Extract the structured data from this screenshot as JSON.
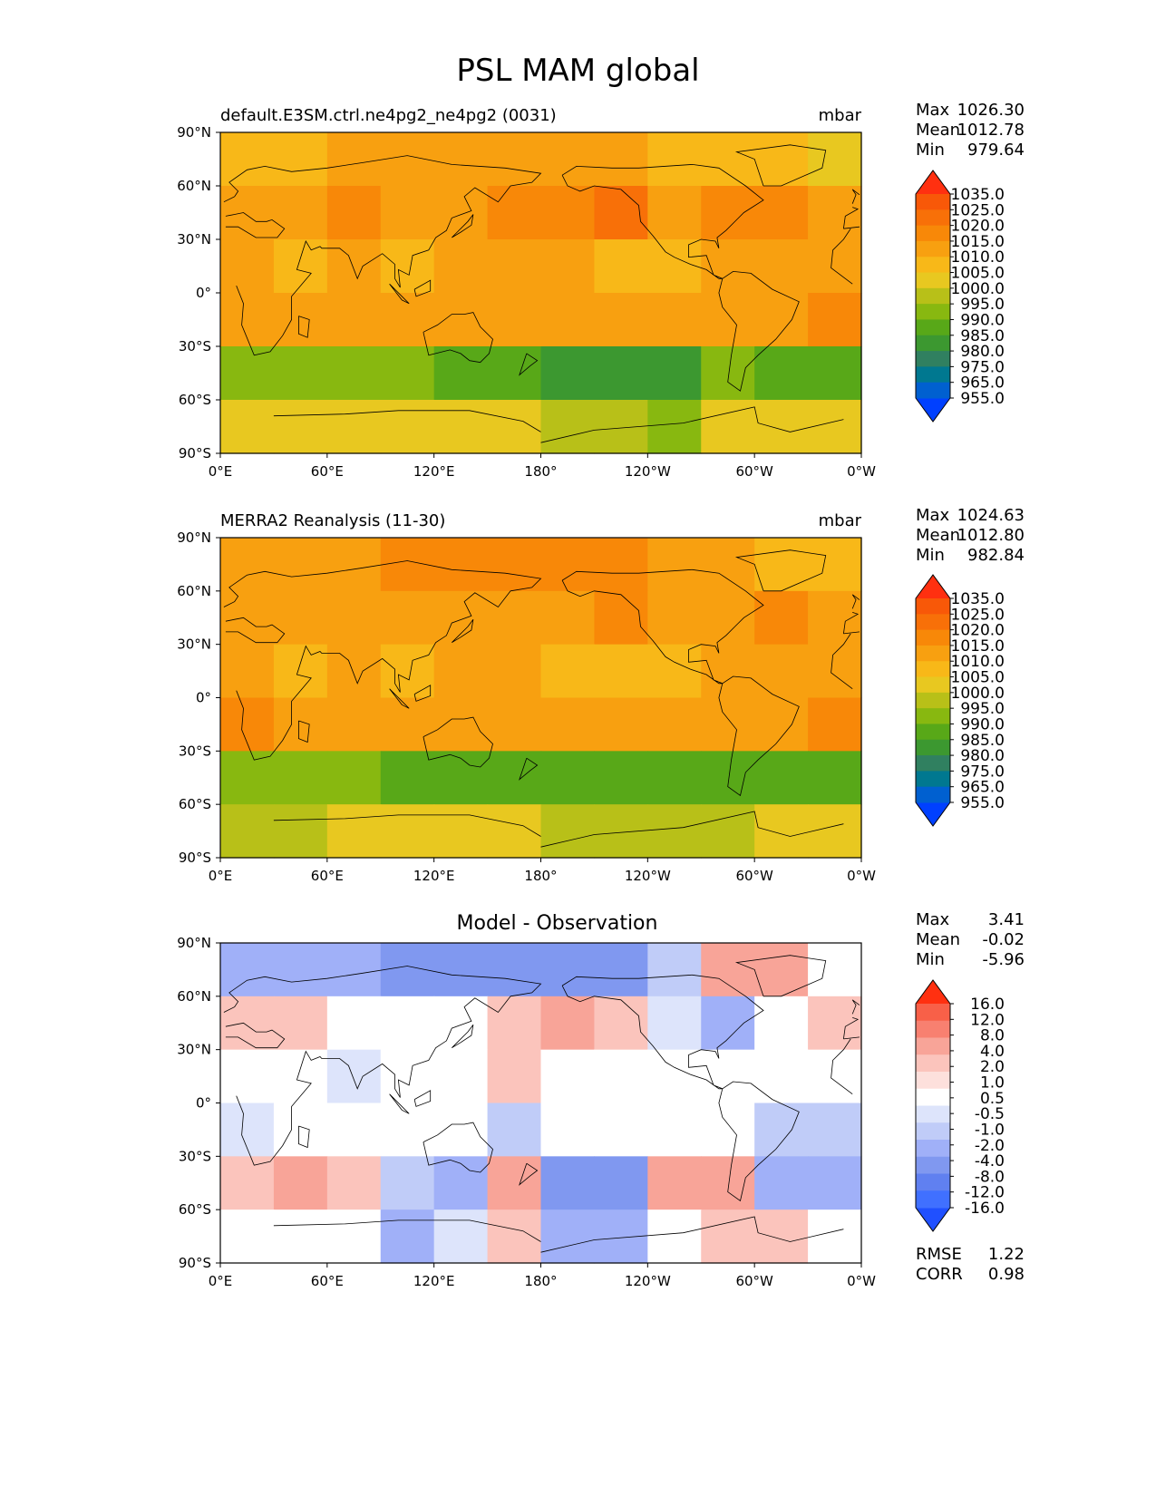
{
  "figure_title": "PSL MAM global",
  "lon_ticks": [
    "0°E",
    "60°E",
    "120°E",
    "180°",
    "120°W",
    "60°W",
    "0°W"
  ],
  "lat_ticks": [
    "90°N",
    "60°N",
    "30°N",
    "0°",
    "30°S",
    "60°S",
    "90°S"
  ],
  "colors": {
    "abs_cmap": [
      "#0040ff",
      "#0060d0",
      "#007890",
      "#308060",
      "#3c9830",
      "#58a818",
      "#88b810",
      "#b8c018",
      "#e8c820",
      "#f8b818",
      "#f8a010",
      "#f88808",
      "#f87008",
      "#f85808",
      "#ff3010"
    ],
    "diff_cmap": [
      "#2050ff",
      "#4070ff",
      "#6080f0",
      "#8098f0",
      "#a0b0f8",
      "#c0ccf8",
      "#dde4fb",
      "#ffffff",
      "#fde0dc",
      "#fbc4bc",
      "#f8a498",
      "#f88070",
      "#f86048",
      "#ff3010"
    ]
  },
  "chart_data": [
    {
      "type": "heatmap",
      "title": "default.E3SM.ctrl.ne4pg2_ne4pg2 (0031)",
      "units": "mbar",
      "stats": {
        "labels": [
          "Max",
          "Mean",
          "Min"
        ],
        "values": [
          "1026.30",
          "1012.78",
          "979.64"
        ]
      },
      "colorbar_levels": [
        "1035.0",
        "1025.0",
        "1020.0",
        "1015.0",
        "1010.0",
        "1005.0",
        "1000.0",
        "995.0",
        "990.0",
        "985.0",
        "980.0",
        "975.0",
        "965.0",
        "955.0"
      ],
      "x": [
        0,
        30,
        60,
        90,
        120,
        150,
        180,
        210,
        240,
        270,
        300,
        330
      ],
      "y": [
        75,
        45,
        15,
        -15,
        -45,
        -75
      ],
      "z": [
        [
          1012,
          1010,
          1013,
          1016,
          1016,
          1014,
          1017,
          1014,
          1012,
          1011,
          1008,
          1006
        ],
        [
          1016,
          1015,
          1018,
          1017,
          1016,
          1018,
          1019,
          1023,
          1015,
          1018,
          1020,
          1017
        ],
        [
          1013,
          1012,
          1013,
          1012,
          1013,
          1015,
          1013,
          1012,
          1011,
          1013,
          1013,
          1013
        ],
        [
          1017,
          1017,
          1016,
          1016,
          1015,
          1014,
          1017,
          1017,
          1014,
          1015,
          1017,
          1019
        ],
        [
          997,
          997,
          997,
          993,
          990,
          992,
          986,
          983,
          985,
          993,
          992,
          991
        ],
        [
          1003,
          1003,
          1005,
          1006,
          1007,
          1005,
          998,
          998,
          997,
          1004,
          1005,
          1006
        ]
      ]
    },
    {
      "type": "heatmap",
      "title": "MERRA2 Reanalysis (11-30)",
      "units": "mbar",
      "stats": {
        "labels": [
          "Max",
          "Mean",
          "Min"
        ],
        "values": [
          "1024.63",
          "1012.80",
          "982.84"
        ]
      },
      "colorbar_levels": [
        "1035.0",
        "1025.0",
        "1020.0",
        "1015.0",
        "1010.0",
        "1005.0",
        "1000.0",
        "995.0",
        "990.0",
        "985.0",
        "980.0",
        "975.0",
        "965.0",
        "955.0"
      ],
      "x": [
        0,
        30,
        60,
        90,
        120,
        150,
        180,
        210,
        240,
        270,
        300,
        330
      ],
      "y": [
        75,
        45,
        15,
        -15,
        -45,
        -75
      ],
      "z": [
        [
          1016,
          1014,
          1016,
          1019,
          1018,
          1018,
          1018,
          1018,
          1016,
          1013,
          1010,
          1010
        ],
        [
          1014,
          1014,
          1016,
          1017,
          1015,
          1017,
          1017,
          1021,
          1016,
          1016,
          1021,
          1015
        ],
        [
          1013,
          1012,
          1013,
          1012,
          1013,
          1013,
          1012,
          1012,
          1011,
          1013,
          1013,
          1013
        ],
        [
          1018,
          1017,
          1016,
          1016,
          1015,
          1015,
          1017,
          1016,
          1015,
          1015,
          1017,
          1019
        ],
        [
          994,
          993,
          994,
          992,
          991,
          989,
          990,
          991,
          988,
          990,
          989,
          992
        ],
        [
          1002,
          1001,
          1003,
          1005,
          1006,
          1005,
          999,
          1000,
          999,
          1001,
          1003,
          1004
        ]
      ]
    },
    {
      "type": "heatmap",
      "title": "Model - Observation",
      "units": "",
      "stats": {
        "labels": [
          "Max",
          "Mean",
          "Min"
        ],
        "values": [
          "3.41",
          "-0.02",
          "-5.96"
        ]
      },
      "colorbar_levels": [
        "16.0",
        "12.0",
        "8.0",
        "4.0",
        "2.0",
        "1.0",
        "0.5",
        "-0.5",
        "-1.0",
        "-2.0",
        "-4.0",
        "-8.0",
        "-12.0",
        "-16.0"
      ],
      "metrics": {
        "labels": [
          "RMSE",
          "CORR"
        ],
        "values": [
          "1.22",
          "0.98"
        ]
      },
      "x": [
        0,
        30,
        60,
        90,
        120,
        150,
        180,
        210,
        240,
        270,
        300,
        330
      ],
      "y": [
        75,
        45,
        15,
        -15,
        -45,
        -75
      ],
      "z": [
        [
          -2.5,
          -2.5,
          -2.5,
          -3.0,
          -3.0,
          -4.0,
          -4.0,
          -4.0,
          -0.8,
          2.5,
          2.5,
          -0.3
        ],
        [
          1.5,
          1.0,
          -0.3,
          -0.3,
          0.3,
          1.5,
          2.8,
          1.2,
          -0.6,
          -2.0,
          -0.3,
          1.0
        ],
        [
          0.2,
          0.2,
          -0.6,
          0.2,
          0.2,
          1.2,
          0.3,
          0.3,
          0.2,
          0.0,
          0.2,
          0.3
        ],
        [
          -0.5,
          -0.3,
          -0.2,
          -0.3,
          -0.3,
          -1.2,
          0.2,
          0.3,
          -0.2,
          -0.3,
          -1.0,
          -1.2
        ],
        [
          1.0,
          3.0,
          1.5,
          -1.0,
          -2.5,
          2.5,
          -3.0,
          -3.5,
          2.0,
          2.8,
          -2.0,
          -1.5
        ],
        [
          0.2,
          0.5,
          0.2,
          -2.0,
          -0.5,
          0.8,
          -1.5,
          -1.5,
          0.2,
          1.5,
          0.8,
          0.2
        ]
      ]
    }
  ]
}
